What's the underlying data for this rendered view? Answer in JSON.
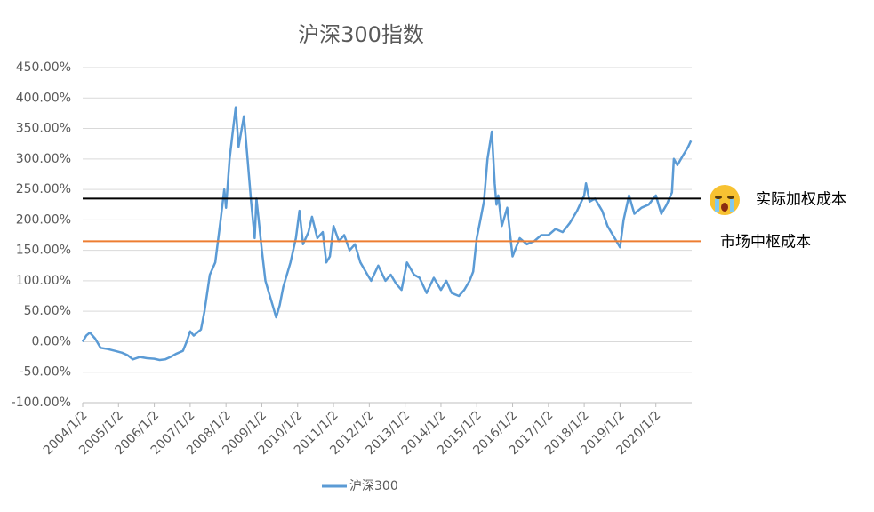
{
  "chart_data": {
    "type": "line",
    "title": "沪深300指数",
    "x": [
      2004.0,
      2004.1,
      2004.2,
      2004.35,
      2004.5,
      2004.7,
      2004.9,
      2005.1,
      2005.25,
      2005.4,
      2005.6,
      2005.8,
      2006.0,
      2006.15,
      2006.3,
      2006.45,
      2006.6,
      2006.8,
      2006.9,
      2007.0,
      2007.1,
      2007.3,
      2007.4,
      2007.55,
      2007.7,
      2007.85,
      2007.95,
      2008.0,
      2008.1,
      2008.2,
      2008.27,
      2008.35,
      2008.5,
      2008.6,
      2008.7,
      2008.8,
      2008.85,
      2009.0,
      2009.1,
      2009.2,
      2009.3,
      2009.4,
      2009.5,
      2009.6,
      2009.8,
      2009.95,
      2010.05,
      2010.15,
      2010.3,
      2010.4,
      2010.55,
      2010.7,
      2010.8,
      2010.9,
      2011.0,
      2011.15,
      2011.3,
      2011.45,
      2011.6,
      2011.75,
      2011.95,
      2012.05,
      2012.25,
      2012.45,
      2012.6,
      2012.75,
      2012.9,
      2013.05,
      2013.25,
      2013.4,
      2013.6,
      2013.8,
      2014.0,
      2014.15,
      2014.3,
      2014.5,
      2014.65,
      2014.8,
      2014.9,
      2015.0,
      2015.1,
      2015.2,
      2015.3,
      2015.42,
      2015.5,
      2015.55,
      2015.6,
      2015.7,
      2015.85,
      2016.0,
      2016.2,
      2016.4,
      2016.6,
      2016.8,
      2017.0,
      2017.2,
      2017.4,
      2017.6,
      2017.8,
      2018.0,
      2018.05,
      2018.15,
      2018.3,
      2018.5,
      2018.65,
      2018.8,
      2019.0,
      2019.1,
      2019.25,
      2019.4,
      2019.6,
      2019.8,
      2020.0,
      2020.15,
      2020.3,
      2020.45,
      2020.5,
      2020.6,
      2020.75,
      2020.9,
      2020.98
    ],
    "series": [
      {
        "name": "沪深300",
        "color": "#5b9bd5",
        "values": [
          0,
          10,
          15,
          5,
          -10,
          -12,
          -15,
          -18,
          -22,
          -29,
          -25,
          -27,
          -28,
          -30,
          -29,
          -25,
          -20,
          -15,
          0,
          17,
          10,
          20,
          50,
          110,
          130,
          200,
          250,
          220,
          300,
          350,
          385,
          320,
          370,
          300,
          230,
          170,
          235,
          150,
          100,
          80,
          60,
          40,
          60,
          90,
          130,
          170,
          215,
          160,
          180,
          205,
          170,
          180,
          130,
          140,
          190,
          165,
          175,
          150,
          160,
          130,
          110,
          100,
          125,
          100,
          110,
          95,
          85,
          130,
          110,
          105,
          80,
          105,
          85,
          100,
          80,
          75,
          85,
          100,
          115,
          170,
          200,
          230,
          300,
          345,
          260,
          225,
          240,
          190,
          220,
          140,
          170,
          160,
          165,
          175,
          175,
          185,
          180,
          195,
          215,
          240,
          260,
          230,
          235,
          215,
          190,
          175,
          155,
          200,
          240,
          210,
          220,
          225,
          240,
          210,
          225,
          245,
          300,
          290,
          305,
          320,
          330
        ]
      }
    ],
    "xlim": [
      2004,
      2021
    ],
    "xticks": [
      {
        "value": 2004,
        "label": "2004/1/2"
      },
      {
        "value": 2005,
        "label": "2005/1/2"
      },
      {
        "value": 2006,
        "label": "2006/1/2"
      },
      {
        "value": 2007,
        "label": "2007/1/2"
      },
      {
        "value": 2008,
        "label": "2008/1/2"
      },
      {
        "value": 2009,
        "label": "2009/1/2"
      },
      {
        "value": 2010,
        "label": "2010/1/2"
      },
      {
        "value": 2011,
        "label": "2011/1/2"
      },
      {
        "value": 2012,
        "label": "2012/1/2"
      },
      {
        "value": 2013,
        "label": "2013/1/2"
      },
      {
        "value": 2014,
        "label": "2014/1/2"
      },
      {
        "value": 2015,
        "label": "2015/1/2"
      },
      {
        "value": 2016,
        "label": "2016/1/2"
      },
      {
        "value": 2017,
        "label": "2017/1/2"
      },
      {
        "value": 2018,
        "label": "2018/1/2"
      },
      {
        "value": 2019,
        "label": "2019/1/2"
      },
      {
        "value": 2020,
        "label": "2020/1/2"
      }
    ],
    "ylim": [
      -100,
      450
    ],
    "yticks": [
      {
        "value": 450,
        "label": "450.00%"
      },
      {
        "value": 400,
        "label": "400.00%"
      },
      {
        "value": 350,
        "label": "350.00%"
      },
      {
        "value": 300,
        "label": "300.00%"
      },
      {
        "value": 250,
        "label": "250.00%"
      },
      {
        "value": 200,
        "label": "200.00%"
      },
      {
        "value": 150,
        "label": "150.00%"
      },
      {
        "value": 100,
        "label": "100.00%"
      },
      {
        "value": 50,
        "label": "50.00%"
      },
      {
        "value": 0,
        "label": "0.00%"
      },
      {
        "value": -50,
        "label": "-50.00%"
      },
      {
        "value": -100,
        "label": "-100.00%"
      }
    ],
    "grid": true,
    "reference_lines": [
      {
        "value": 235,
        "color": "#000000",
        "label": "实际加权成本"
      },
      {
        "value": 165,
        "color": "#ed7d31",
        "label": "市场中枢成本"
      }
    ],
    "legend": "bottom"
  }
}
